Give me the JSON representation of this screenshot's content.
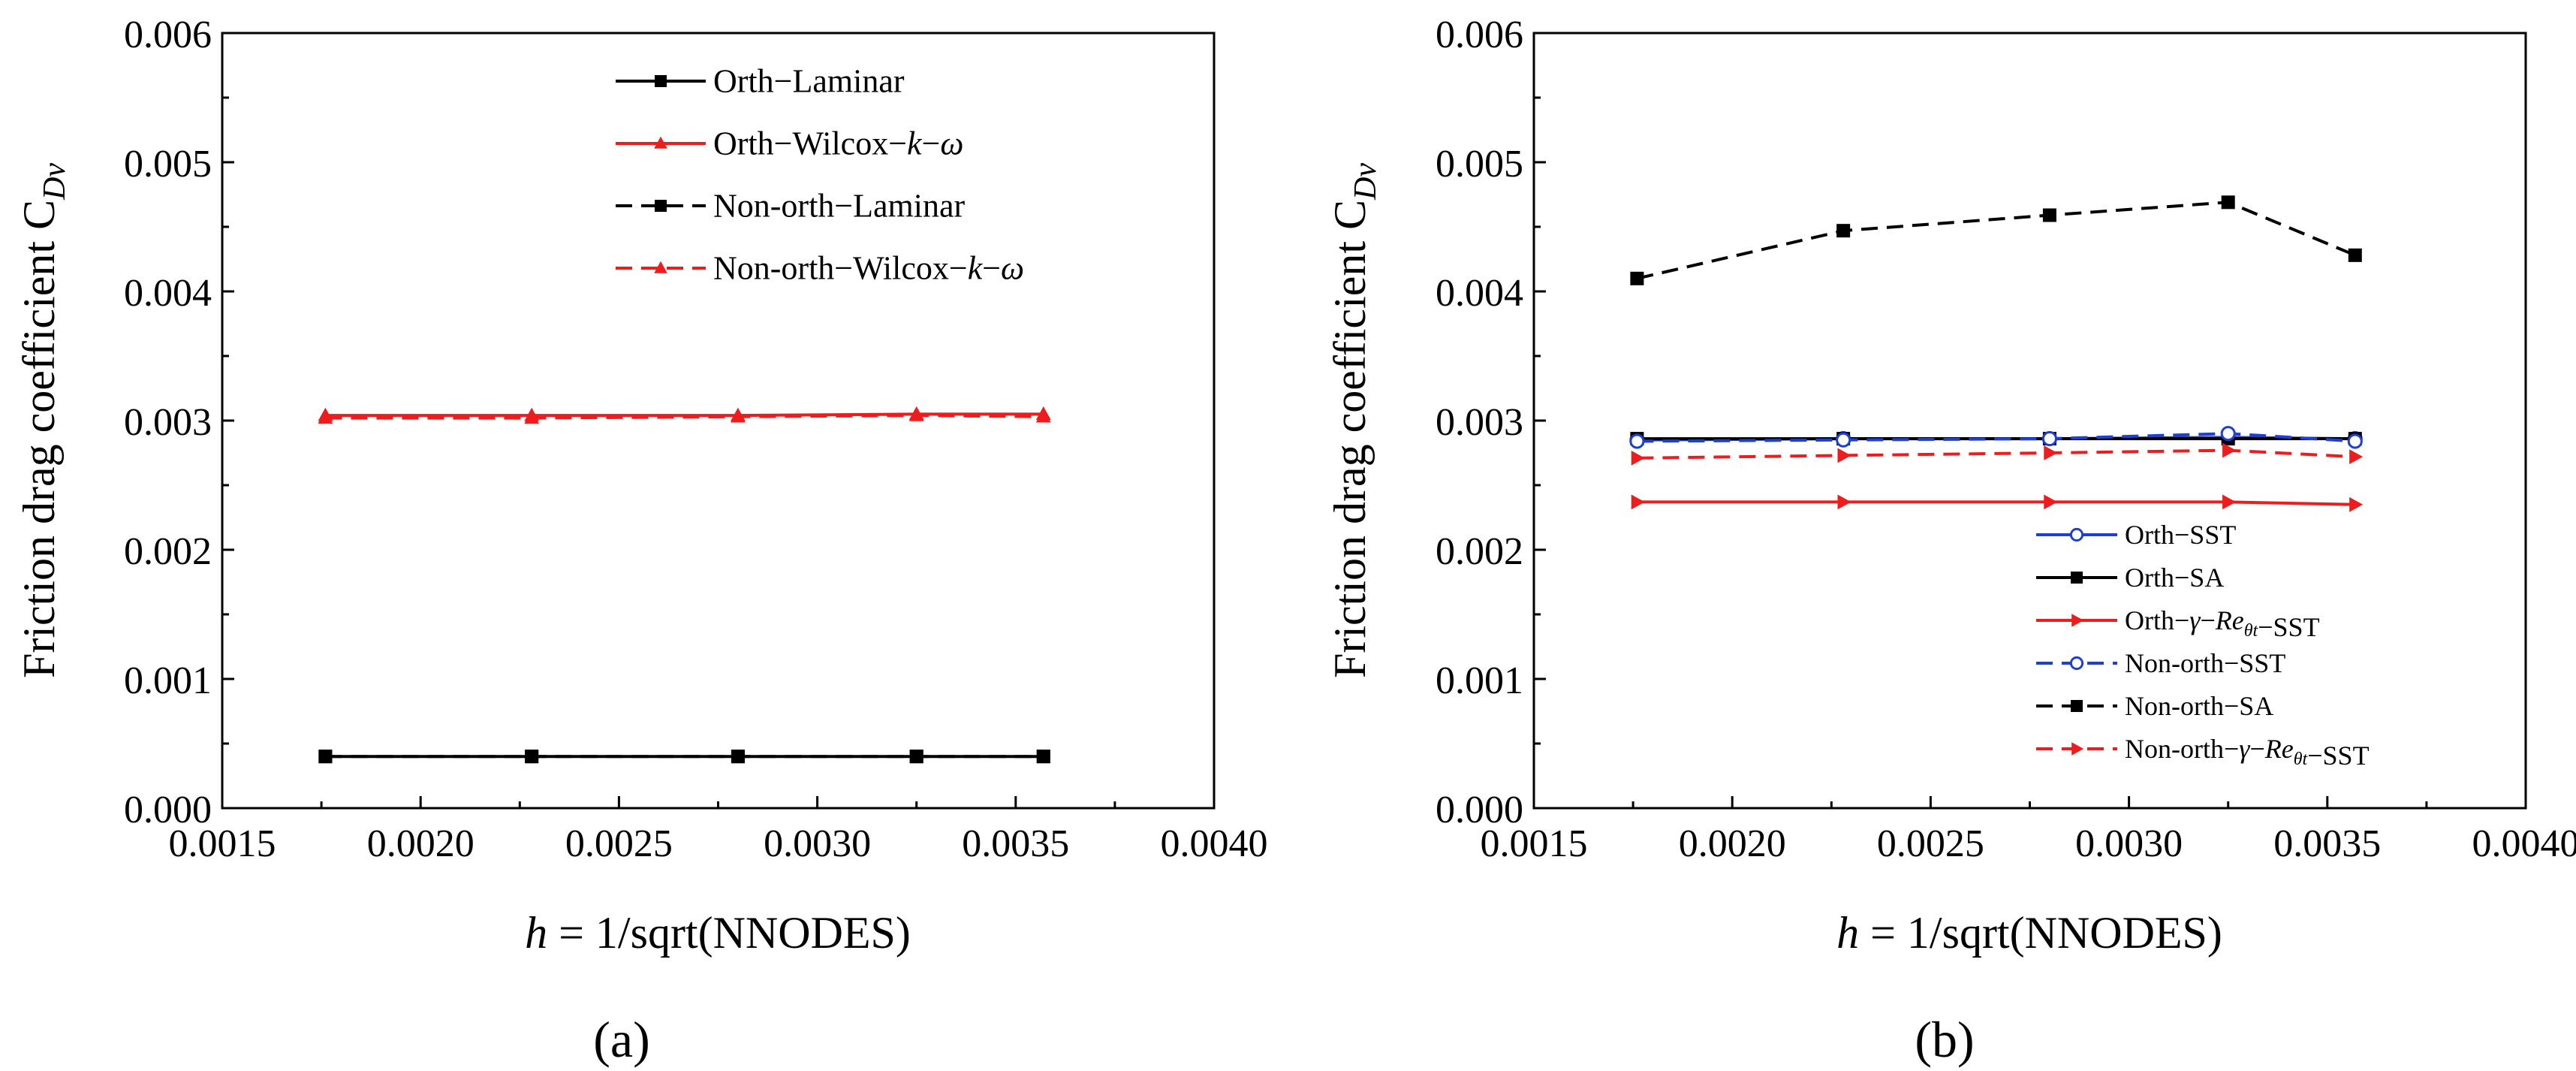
{
  "chart_data": [
    {
      "panel_label": "(a)",
      "type": "line",
      "ylabel": {
        "main": "Friction drag coefficient C",
        "sub": "Dv"
      },
      "xlabel": {
        "var": "h",
        "rest": " = 1/sqrt(NNODES)"
      },
      "xlim": [
        0.0015,
        0.004
      ],
      "ylim": [
        0,
        0.006
      ],
      "xticks": [
        "0.0015",
        "0.0020",
        "0.0025",
        "0.0030",
        "0.0035",
        "0.0040"
      ],
      "yticks": [
        "0.000",
        "0.001",
        "0.002",
        "0.003",
        "0.004",
        "0.005",
        "0.006"
      ],
      "grid": false,
      "legend_position": "top-right",
      "x": [
        0.00176,
        0.00228,
        0.0028,
        0.00325,
        0.00357
      ],
      "series": [
        {
          "name": "Orth−Laminar",
          "label_parts": [
            {
              "t": "Orth−Laminar"
            }
          ],
          "color": "#000000",
          "dash": "solid",
          "marker": "square",
          "values": [
            0.0004,
            0.0004,
            0.0004,
            0.0004,
            0.0004
          ]
        },
        {
          "name": "Orth−Wilcox−k−ω",
          "label_parts": [
            {
              "t": "Orth−Wilcox−"
            },
            {
              "t": "k",
              "i": true
            },
            {
              "t": "−"
            },
            {
              "t": "ω",
              "i": true
            }
          ],
          "color": "#ee1c1c",
          "dash": "solid",
          "marker": "triangle",
          "values": [
            0.00304,
            0.00304,
            0.00304,
            0.00305,
            0.00305
          ]
        },
        {
          "name": "Non-orth−Laminar",
          "label_parts": [
            {
              "t": "Non-orth−Laminar"
            }
          ],
          "color": "#000000",
          "dash": "dash",
          "marker": "square",
          "values": [
            0.0004,
            0.0004,
            0.0004,
            0.0004,
            0.0004
          ]
        },
        {
          "name": "Non-orth−Wilcox−k−ω",
          "label_parts": [
            {
              "t": "Non-orth−Wilcox−"
            },
            {
              "t": "k",
              "i": true
            },
            {
              "t": "−"
            },
            {
              "t": "ω",
              "i": true
            }
          ],
          "color": "#ee1c1c",
          "dash": "dash",
          "marker": "triangle",
          "values": [
            0.00302,
            0.00302,
            0.00303,
            0.00304,
            0.00303
          ]
        }
      ]
    },
    {
      "panel_label": "(b)",
      "type": "line",
      "ylabel": {
        "main": "Friction drag coefficient C",
        "sub": "Dv"
      },
      "xlabel": {
        "var": "h",
        "rest": " = 1/sqrt(NNODES)"
      },
      "xlim": [
        0.0015,
        0.004
      ],
      "ylim": [
        0,
        0.006
      ],
      "xticks": [
        "0.0015",
        "0.0020",
        "0.0025",
        "0.0030",
        "0.0035",
        "0.0040"
      ],
      "yticks": [
        "0.000",
        "0.001",
        "0.002",
        "0.003",
        "0.004",
        "0.005",
        "0.006"
      ],
      "grid": false,
      "legend_position": "bottom-right",
      "x": [
        0.00176,
        0.00228,
        0.0028,
        0.00325,
        0.00357
      ],
      "series": [
        {
          "name": "Orth−SST",
          "label_parts": [
            {
              "t": "Orth−SST"
            }
          ],
          "color": "#1f3fd0",
          "dash": "solid",
          "marker": "circle-open",
          "values": [
            0.00285,
            0.00286,
            0.00286,
            0.00287,
            0.00286
          ]
        },
        {
          "name": "Orth−SA",
          "label_parts": [
            {
              "t": "Orth−SA"
            }
          ],
          "color": "#000000",
          "dash": "solid",
          "marker": "square",
          "values": [
            0.00286,
            0.00286,
            0.00286,
            0.00286,
            0.00286
          ]
        },
        {
          "name": "Orth−γ−Reθt−SST",
          "label_parts": [
            {
              "t": "Orth−"
            },
            {
              "t": "γ",
              "i": true
            },
            {
              "t": "−"
            },
            {
              "t": "Re",
              "i": true
            },
            {
              "t": "θt",
              "i": true,
              "sub": true
            },
            {
              "t": "−SST"
            }
          ],
          "color": "#ee1c1c",
          "dash": "solid",
          "marker": "triangle-right",
          "values": [
            0.00237,
            0.00237,
            0.00237,
            0.00237,
            0.00235
          ]
        },
        {
          "name": "Non-orth−SST",
          "label_parts": [
            {
              "t": "Non-orth−SST"
            }
          ],
          "color": "#1f3fd0",
          "dash": "dash",
          "marker": "circle-open",
          "values": [
            0.00284,
            0.00285,
            0.00286,
            0.0029,
            0.00284
          ]
        },
        {
          "name": "Non-orth−SA",
          "label_parts": [
            {
              "t": "Non-orth−SA"
            }
          ],
          "color": "#000000",
          "dash": "dash",
          "marker": "square",
          "values": [
            0.0041,
            0.00447,
            0.00459,
            0.00469,
            0.00428
          ]
        },
        {
          "name": "Non-orth−γ−Reθt−SST",
          "label_parts": [
            {
              "t": "Non-orth−"
            },
            {
              "t": "γ",
              "i": true
            },
            {
              "t": "−"
            },
            {
              "t": "Re",
              "i": true
            },
            {
              "t": "θt",
              "i": true,
              "sub": true
            },
            {
              "t": "−SST"
            }
          ],
          "color": "#ee1c1c",
          "dash": "dash",
          "marker": "triangle-right",
          "values": [
            0.00271,
            0.00273,
            0.00275,
            0.00277,
            0.00272
          ]
        }
      ]
    }
  ]
}
